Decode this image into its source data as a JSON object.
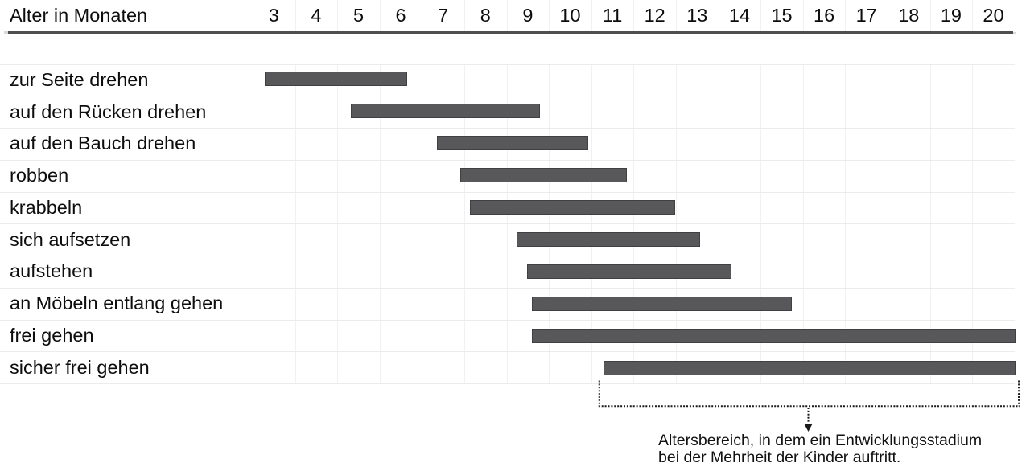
{
  "colors": {
    "background": "#ffffff",
    "text": "#0d0d0d",
    "header_rule": "#4d4e50",
    "bar_fill": "#58585a",
    "bar_border": "#404042",
    "grid_vertical": "#f1f1f1",
    "grid_horizontal": "#ececec",
    "annotation": "#1a1a1a"
  },
  "chart_data": {
    "type": "gantt",
    "title": "Alter in Monaten",
    "x_axis": {
      "label": "Alter in Monaten",
      "unit": "Monate",
      "tick_labels": [
        "3",
        "4",
        "5",
        "6",
        "7",
        "8",
        "9",
        "10",
        "11",
        "12",
        "13",
        "14",
        "15",
        "16",
        "17",
        "18",
        "19",
        "20"
      ],
      "month_min": 3,
      "month_max": 20,
      "grid": true
    },
    "rows": [
      {
        "label": "zur Seite drehen",
        "start_month": 2.79,
        "end_month": 6.15
      },
      {
        "label": "auf den Rücken drehen",
        "start_month": 4.81,
        "end_month": 9.28
      },
      {
        "label": "auf den Bauch drehen",
        "start_month": 6.86,
        "end_month": 10.42
      },
      {
        "label": "robben",
        "start_month": 7.41,
        "end_month": 11.34
      },
      {
        "label": "krabbeln",
        "start_month": 7.64,
        "end_month": 12.48
      },
      {
        "label": "sich aufsetzen",
        "start_month": 8.73,
        "end_month": 13.08
      },
      {
        "label": "aufstehen",
        "start_month": 8.98,
        "end_month": 13.81
      },
      {
        "label": "an Möbeln entlang gehen",
        "start_month": 9.1,
        "end_month": 15.23
      },
      {
        "label": "frei gehen",
        "start_month": 9.09,
        "end_month": 20.52
      },
      {
        "label": "sicher frei gehen",
        "start_month": 10.78,
        "end_month": 20.52
      }
    ],
    "annotation": {
      "bracket_start_month": 10.69,
      "bracket_end_month": 20.6,
      "caption_line1": "Altersbereich, in dem ein Entwicklungsstadium",
      "caption_line2": "bei der Mehrheit der Kinder auftritt."
    }
  }
}
